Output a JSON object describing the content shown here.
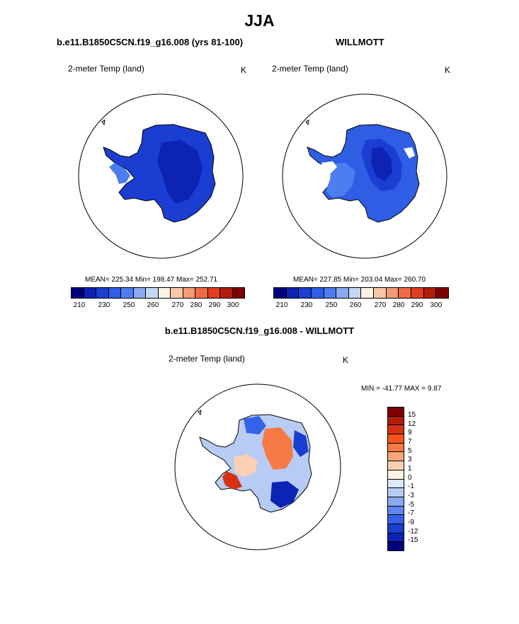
{
  "page": {
    "season": "JJA"
  },
  "panels": {
    "model": {
      "title": "b.e11.B1850C5CN.f19_g16.008 (yrs 81-100)",
      "variable": "2-meter Temp (land)",
      "units": "K",
      "stats": "MEAN= 225.34  Min= 198.47  Max= 252.71"
    },
    "obs": {
      "title": "WILLMOTT",
      "variable": "2-meter Temp (land)",
      "units": "K",
      "stats": "MEAN= 227.85  Min= 203.04  Max= 260.70"
    },
    "diff": {
      "title": "b.e11.B1850C5CN.f19_g16.008 - WILLMOTT",
      "variable": "2-meter Temp (land)",
      "units": "K",
      "minmax": "MIN = -41.77 MAX =   9.87"
    }
  },
  "abs_colorbar": {
    "colors": [
      "#00007f",
      "#0c23b4",
      "#1a3ed1",
      "#2f5ee4",
      "#4c7ef0",
      "#8aa9f2",
      "#c5d7f7",
      "#fff2e6",
      "#f7c7a8",
      "#f59a76",
      "#ef6a46",
      "#e23d1e",
      "#b01e0b",
      "#7f0000"
    ],
    "ticks": [
      "210",
      "230",
      "250",
      "260",
      "270",
      "280",
      "290",
      "300"
    ]
  },
  "diff_colorbar": {
    "colors": [
      "#7f0000",
      "#b01e0b",
      "#d5320f",
      "#f4541c",
      "#f57a45",
      "#f9a57a",
      "#fad0b5",
      "#fff2e6",
      "#dce8fb",
      "#b7ccf4",
      "#8aa9f2",
      "#5f87ef",
      "#3563e8",
      "#1a3ed1",
      "#0c23b4",
      "#00007f"
    ],
    "ticks": [
      "15",
      "12",
      "9",
      "7",
      "5",
      "3",
      "1",
      "0",
      "-1",
      "-3",
      "-5",
      "-7",
      "-9",
      "-12",
      "-15"
    ]
  }
}
